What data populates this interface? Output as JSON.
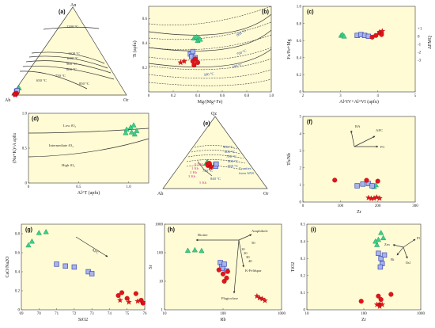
{
  "colors": {
    "panel_background": "#fefbd5",
    "triangle": "#3ecf8a",
    "square_fill": "#aab3ea",
    "square_stroke": "#3d4fb8",
    "circle": "#e0151c",
    "star": "#e0151c"
  },
  "panels": {
    "a": {
      "label": "(a)",
      "apices": {
        "top": "An",
        "left": "Ab",
        "right": "Or"
      },
      "isotherms": [
        "1200 °C",
        "1100 °C",
        "1000 °C",
        "900 °C",
        "800 °C",
        "650 °C",
        "850 °C",
        "750 °C"
      ]
    },
    "b": {
      "label": "(b)",
      "isotherms": [
        "800 °C",
        "700 °C",
        "600 °C",
        "500 °C"
      ]
    },
    "c": {
      "label": "(c)",
      "right_axis_label": "ΔFMQ"
    },
    "d": {
      "label": "(d)",
      "field_labels": [
        "Low fO₂",
        "Intermediate fO₂",
        "High fO₂"
      ]
    },
    "e": {
      "label": "(e)",
      "apices": {
        "top": "Qz",
        "left": "Ab",
        "right": "Or"
      },
      "isotherms": [
        "900 °C",
        "800 °C",
        "700 °C",
        "600 °C",
        "660 °C",
        "740 °C",
        "840 °C"
      ],
      "pressures": [
        "0.5 Kb",
        "1 Kb",
        "2 Kb",
        "3 Kb",
        "5 Kb"
      ],
      "annotation": [
        "Granites",
        "from ANS"
      ]
    },
    "f": {
      "label": "(f)",
      "vectors": [
        "BA",
        "AFC",
        "FC"
      ]
    },
    "g": {
      "label": "(g)",
      "vectors": [
        "AFC"
      ]
    },
    "h": {
      "label": "(h)",
      "vectors": [
        "Biotite",
        "Amphibole",
        "K-Feldspar",
        "Plagioclase"
      ],
      "vector_ticks": [
        "10",
        "20",
        "30",
        "40",
        "50"
      ]
    },
    "i": {
      "label": "(i)",
      "vectors": [
        "Pl",
        "Zrn",
        "Bt",
        "Ilsl"
      ]
    }
  },
  "chart_data": [
    {
      "id": "a",
      "type": "scatter",
      "title": "",
      "xlabel": "",
      "ylabel": "",
      "ternary": [
        "An",
        "Ab",
        "Or"
      ],
      "series": [
        {
          "symbol": "triangle",
          "points": [
            [
              0.05,
              0.93,
              0.02
            ],
            [
              0.08,
              0.9,
              0.02
            ]
          ]
        },
        {
          "symbol": "square",
          "points": [
            [
              0.04,
              0.94,
              0.02
            ],
            [
              0.05,
              0.93,
              0.02
            ]
          ]
        },
        {
          "symbol": "circle",
          "points": [
            [
              0.01,
              0.96,
              0.03
            ],
            [
              0.02,
              0.95,
              0.03
            ],
            [
              0.01,
              0.97,
              0.02
            ]
          ]
        },
        {
          "symbol": "star",
          "points": [
            [
              0.0,
              0.97,
              0.03
            ],
            [
              0.01,
              0.97,
              0.02
            ]
          ]
        }
      ]
    },
    {
      "id": "b",
      "type": "scatter",
      "xlabel": "Mg/(Mg+Fe)",
      "ylabel": "Ti (apfu)",
      "xlim": [
        0,
        1.0
      ],
      "ylim": [
        0,
        0.7
      ],
      "xticks": [
        "0",
        "0.2",
        "0.4",
        "0.6",
        "0.8",
        "1.0"
      ],
      "yticks": [
        "0.2",
        "0.4",
        "0.6"
      ],
      "series": [
        {
          "symbol": "triangle",
          "points": [
            [
              0.37,
              0.44
            ],
            [
              0.39,
              0.45
            ],
            [
              0.41,
              0.44
            ],
            [
              0.4,
              0.42
            ],
            [
              0.42,
              0.43
            ]
          ]
        },
        {
          "symbol": "square",
          "points": [
            [
              0.34,
              0.31
            ],
            [
              0.36,
              0.33
            ],
            [
              0.35,
              0.29
            ],
            [
              0.38,
              0.28
            ]
          ]
        },
        {
          "symbol": "circle",
          "points": [
            [
              0.36,
              0.25
            ],
            [
              0.38,
              0.27
            ],
            [
              0.37,
              0.22
            ],
            [
              0.4,
              0.24
            ]
          ]
        },
        {
          "symbol": "star",
          "points": [
            [
              0.26,
              0.24
            ],
            [
              0.29,
              0.25
            ]
          ]
        }
      ]
    },
    {
      "id": "c",
      "type": "scatter",
      "xlabel": "Al^IV+Al^VI (apfu)",
      "ylabel": "Fe/Fe+Mg",
      "xlim": [
        2,
        5
      ],
      "ylim": [
        0,
        1.0
      ],
      "xticks": [
        "2",
        "3",
        "4",
        "5"
      ],
      "yticks": [
        "0",
        "0.2",
        "0.4",
        "0.6",
        "0.8",
        "1.0"
      ],
      "right_ticks": [
        "+1",
        "0",
        "-1",
        "-2",
        "-3"
      ],
      "series": [
        {
          "symbol": "triangle",
          "points": [
            [
              3.02,
              0.66
            ],
            [
              3.06,
              0.67
            ],
            [
              3.1,
              0.65
            ]
          ]
        },
        {
          "symbol": "square",
          "points": [
            [
              3.45,
              0.66
            ],
            [
              3.55,
              0.67
            ],
            [
              3.65,
              0.66
            ],
            [
              3.75,
              0.65
            ]
          ]
        },
        {
          "symbol": "circle",
          "points": [
            [
              3.95,
              0.66
            ],
            [
              4.05,
              0.69
            ],
            [
              3.85,
              0.64
            ],
            [
              4.1,
              0.67
            ]
          ]
        },
        {
          "symbol": "star",
          "points": [
            [
              4.05,
              0.7
            ],
            [
              4.12,
              0.71
            ]
          ]
        }
      ]
    },
    {
      "id": "d",
      "type": "scatter",
      "xlabel": "Al^T (apfu)",
      "ylabel": "(Na+K)^A apfu",
      "xlim": [
        0,
        1.2
      ],
      "ylim": [
        0,
        1.0
      ],
      "xticks": [
        "0",
        "0.5",
        "1.0"
      ],
      "yticks": [
        "0",
        "0.5",
        "1.0"
      ],
      "series": [
        {
          "symbol": "triangle",
          "points": [
            [
              1.02,
              0.8
            ],
            [
              1.05,
              0.83
            ],
            [
              0.98,
              0.77
            ],
            [
              1.03,
              0.73
            ],
            [
              1.08,
              0.75
            ],
            [
              0.97,
              0.72
            ],
            [
              1.06,
              0.7
            ]
          ]
        }
      ]
    },
    {
      "id": "e",
      "type": "scatter",
      "title": "",
      "ternary": [
        "Qz",
        "Ab",
        "Or"
      ],
      "series": [
        {
          "symbol": "triangle",
          "points": [
            [
              0.36,
              0.4,
              0.24
            ],
            [
              0.35,
              0.41,
              0.24
            ],
            [
              0.37,
              0.39,
              0.24
            ]
          ]
        },
        {
          "symbol": "square",
          "points": [
            [
              0.33,
              0.33,
              0.34
            ],
            [
              0.31,
              0.34,
              0.35
            ],
            [
              0.34,
              0.32,
              0.34
            ]
          ]
        },
        {
          "symbol": "circle",
          "points": [
            [
              0.34,
              0.4,
              0.26
            ],
            [
              0.32,
              0.41,
              0.27
            ],
            [
              0.35,
              0.38,
              0.27
            ]
          ]
        },
        {
          "symbol": "star",
          "points": [
            [
              0.3,
              0.39,
              0.31
            ],
            [
              0.29,
              0.4,
              0.31
            ],
            [
              0.31,
              0.38,
              0.31
            ]
          ]
        }
      ]
    },
    {
      "id": "f",
      "type": "scatter",
      "xlabel": "Zr",
      "ylabel": "Th/Nb",
      "xlim": [
        0,
        300
      ],
      "ylim": [
        0,
        5
      ],
      "xticks": [
        "0",
        "100",
        "200",
        "300"
      ],
      "yticks": [
        "0",
        "1",
        "2",
        "3",
        "4",
        "5"
      ],
      "series": [
        {
          "symbol": "triangle",
          "points": [
            [
              185,
              0.95
            ],
            [
              190,
              0.9
            ],
            [
              195,
              1.0
            ]
          ]
        },
        {
          "symbol": "square",
          "points": [
            [
              145,
              0.95
            ],
            [
              160,
              1.05
            ],
            [
              175,
              1.08
            ],
            [
              185,
              0.95
            ]
          ]
        },
        {
          "symbol": "circle",
          "points": [
            [
              85,
              1.28
            ],
            [
              170,
              1.27
            ],
            [
              200,
              1.22
            ]
          ]
        },
        {
          "symbol": "star",
          "points": [
            [
              175,
              0.25
            ],
            [
              183,
              0.2
            ],
            [
              190,
              0.22
            ],
            [
              197,
              0.28
            ],
            [
              205,
              0.22
            ]
          ]
        }
      ]
    },
    {
      "id": "g",
      "type": "scatter",
      "xlabel": "SiO2",
      "ylabel": "CaO/Na2O",
      "xlim": [
        69,
        76
      ],
      "ylim": [
        0,
        0.9
      ],
      "xticks": [
        "69",
        "70",
        "71",
        "72",
        "73",
        "74",
        "75",
        "76"
      ],
      "yticks": [
        "0",
        "0.2",
        "0.4",
        "0.6",
        "0.8"
      ],
      "series": [
        {
          "symbol": "triangle",
          "points": [
            [
              69.4,
              0.68
            ],
            [
              69.6,
              0.72
            ],
            [
              70.0,
              0.81
            ],
            [
              70.4,
              0.82
            ]
          ]
        },
        {
          "symbol": "square",
          "points": [
            [
              71.0,
              0.48
            ],
            [
              71.5,
              0.46
            ],
            [
              72.0,
              0.45
            ],
            [
              72.8,
              0.4
            ],
            [
              73.0,
              0.38
            ]
          ]
        },
        {
          "symbol": "circle",
          "points": [
            [
              74.5,
              0.15
            ],
            [
              74.7,
              0.18
            ],
            [
              75.0,
              0.12
            ],
            [
              75.5,
              0.17
            ],
            [
              75.8,
              0.1
            ],
            [
              75.9,
              0.07
            ]
          ]
        },
        {
          "symbol": "star",
          "points": [
            [
              74.6,
              0.1
            ],
            [
              75.1,
              0.08
            ],
            [
              75.6,
              0.09
            ],
            [
              75.9,
              0.08
            ]
          ]
        }
      ]
    },
    {
      "id": "h",
      "type": "scatter",
      "xlabel": "Rb",
      "ylabel": "Sr",
      "log_x": true,
      "log_y": true,
      "xlim": [
        10,
        1000
      ],
      "ylim": [
        1,
        1000
      ],
      "xticks": [
        "10",
        "100",
        "1000"
      ],
      "yticks": [
        "1",
        "10",
        "100",
        "1000"
      ],
      "series": [
        {
          "symbol": "triangle",
          "points": [
            [
              25,
              120
            ],
            [
              33,
              125
            ],
            [
              43,
              118
            ]
          ]
        },
        {
          "symbol": "square",
          "points": [
            [
              90,
              45
            ],
            [
              95,
              33
            ],
            [
              100,
              28
            ],
            [
              105,
              40
            ],
            [
              115,
              23
            ]
          ]
        },
        {
          "symbol": "circle",
          "points": [
            [
              85,
              25
            ],
            [
              100,
              18
            ],
            [
              105,
              10
            ],
            [
              115,
              13
            ],
            [
              120,
              22
            ]
          ]
        },
        {
          "symbol": "star",
          "points": [
            [
              380,
              3.0
            ],
            [
              420,
              2.6
            ],
            [
              470,
              2.4
            ],
            [
              520,
              2.1
            ]
          ]
        }
      ]
    },
    {
      "id": "i",
      "type": "scatter",
      "xlabel": "Zr",
      "ylabel": "TiO2",
      "log_x": true,
      "xlim": [
        10,
        1000
      ],
      "ylim": [
        0,
        0.5
      ],
      "xticks": [
        "10",
        "100",
        "1000"
      ],
      "yticks": [
        "0",
        "0.1",
        "0.2",
        "0.3",
        "0.4",
        "0.5"
      ],
      "series": [
        {
          "symbol": "triangle",
          "points": [
            [
              170,
              0.38
            ],
            [
              180,
              0.41
            ],
            [
              200,
              0.45
            ],
            [
              220,
              0.42
            ],
            [
              160,
              0.4
            ]
          ]
        },
        {
          "symbol": "square",
          "points": [
            [
              180,
              0.33
            ],
            [
              200,
              0.3
            ],
            [
              210,
              0.27
            ],
            [
              230,
              0.32
            ],
            [
              195,
              0.25
            ]
          ]
        },
        {
          "symbol": "circle",
          "points": [
            [
              90,
              0.05
            ],
            [
              180,
              0.08
            ],
            [
              200,
              0.06
            ],
            [
              300,
              0.09
            ],
            [
              190,
              0.03
            ]
          ]
        },
        {
          "symbol": "star",
          "points": [
            [
              170,
              0.03
            ],
            [
              190,
              0.02
            ],
            [
              210,
              0.03
            ]
          ]
        }
      ]
    }
  ]
}
